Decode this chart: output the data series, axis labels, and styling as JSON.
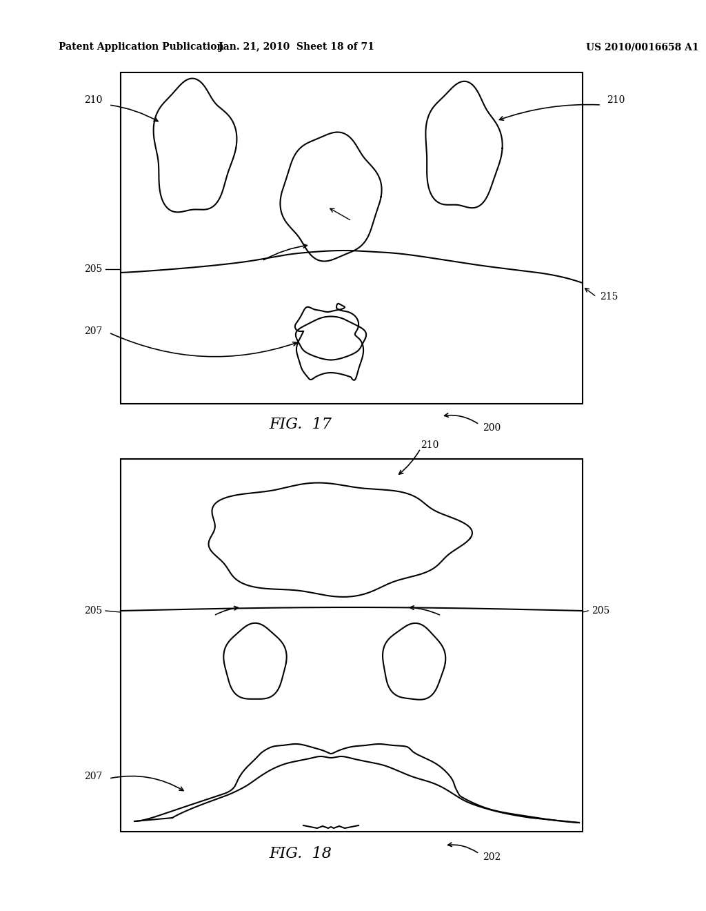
{
  "title_left": "Patent Application Publication",
  "title_center": "Jan. 21, 2010  Sheet 18 of 71",
  "title_right": "US 2010/0016658 A1",
  "fig17_label": "FIG.  17",
  "fig18_label": "FIG.  18",
  "fig17_ref": "200",
  "fig18_ref": "202",
  "background_color": "#ffffff",
  "line_color": "#000000",
  "font_size_header": 10,
  "font_size_label": 11,
  "font_size_ref": 10
}
